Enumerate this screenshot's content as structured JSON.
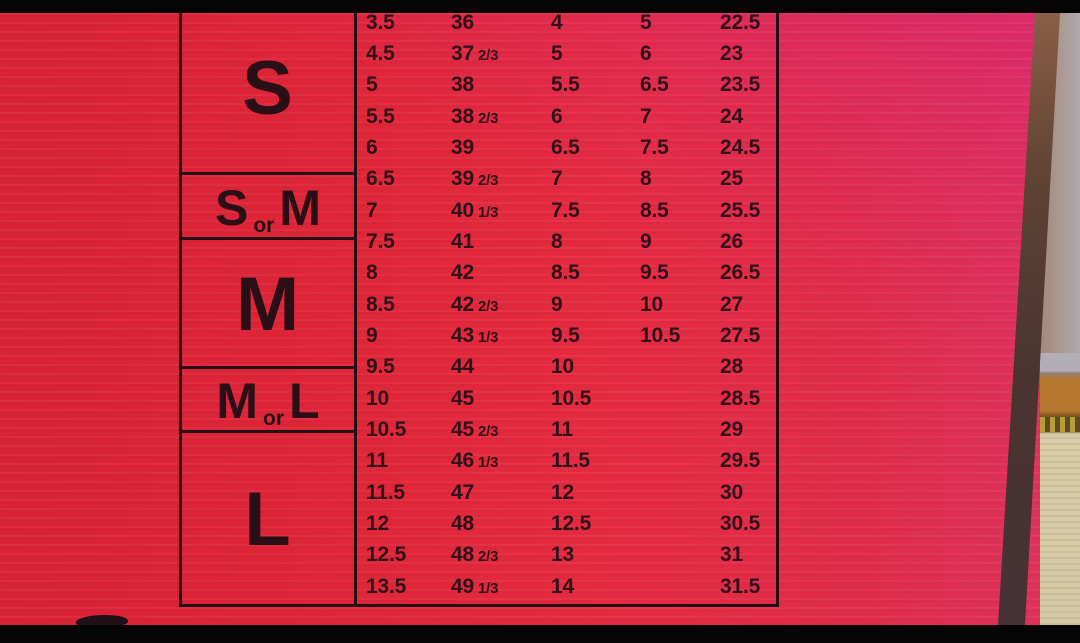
{
  "meta": {
    "description": "Photograph of a size-conversion chart printed on a red shoe box, letterboxed with black bars"
  },
  "colors": {
    "box_red": "#e02639",
    "box_red_pink_sheen": "#dd3564",
    "ink": "#31121a",
    "table_border": "#240f16",
    "letterbox": "#050505",
    "wall": "#b3aeb5",
    "wood_trim": "#b5762e",
    "trim_ornament_gold": "#c9a53b",
    "floor": "#d9cca9",
    "box_edge_shadow": "#4a3430"
  },
  "chart_data": {
    "type": "table",
    "headers_visible": false,
    "size_groups": [
      {
        "label": "S",
        "row_count": 5
      },
      {
        "label": "S or M",
        "row_count": 2
      },
      {
        "label": "M",
        "row_count": 4
      },
      {
        "label": "M or L",
        "row_count": 2
      },
      {
        "label": "L",
        "row_count": 6
      }
    ],
    "rows": [
      [
        "3.5",
        "36",
        "4",
        "5",
        "22.5"
      ],
      [
        "4.5",
        "37 2/3",
        "5",
        "6",
        "23"
      ],
      [
        "5",
        "38",
        "5.5",
        "6.5",
        "23.5"
      ],
      [
        "5.5",
        "38 2/3",
        "6",
        "7",
        "24"
      ],
      [
        "6",
        "39",
        "6.5",
        "7.5",
        "24.5"
      ],
      [
        "6.5",
        "39 2/3",
        "7",
        "8",
        "25"
      ],
      [
        "7",
        "40 1/3",
        "7.5",
        "8.5",
        "25.5"
      ],
      [
        "7.5",
        "41",
        "8",
        "9",
        "26"
      ],
      [
        "8",
        "42",
        "8.5",
        "9.5",
        "26.5"
      ],
      [
        "8.5",
        "42 2/3",
        "9",
        "10",
        "27"
      ],
      [
        "9",
        "43 1/3",
        "9.5",
        "10.5",
        "27.5"
      ],
      [
        "9.5",
        "44",
        "10",
        "",
        "28"
      ],
      [
        "10",
        "45",
        "10.5",
        "",
        "28.5"
      ],
      [
        "10.5",
        "45 2/3",
        "11",
        "",
        "29"
      ],
      [
        "11",
        "46 1/3",
        "11.5",
        "",
        "29.5"
      ],
      [
        "11.5",
        "47",
        "12",
        "",
        "30"
      ],
      [
        "12",
        "48",
        "12.5",
        "",
        "30.5"
      ],
      [
        "12.5",
        "48 2/3",
        "13",
        "",
        "31"
      ],
      [
        "13.5",
        "49 1/3",
        "14",
        "",
        "31.5"
      ]
    ]
  }
}
